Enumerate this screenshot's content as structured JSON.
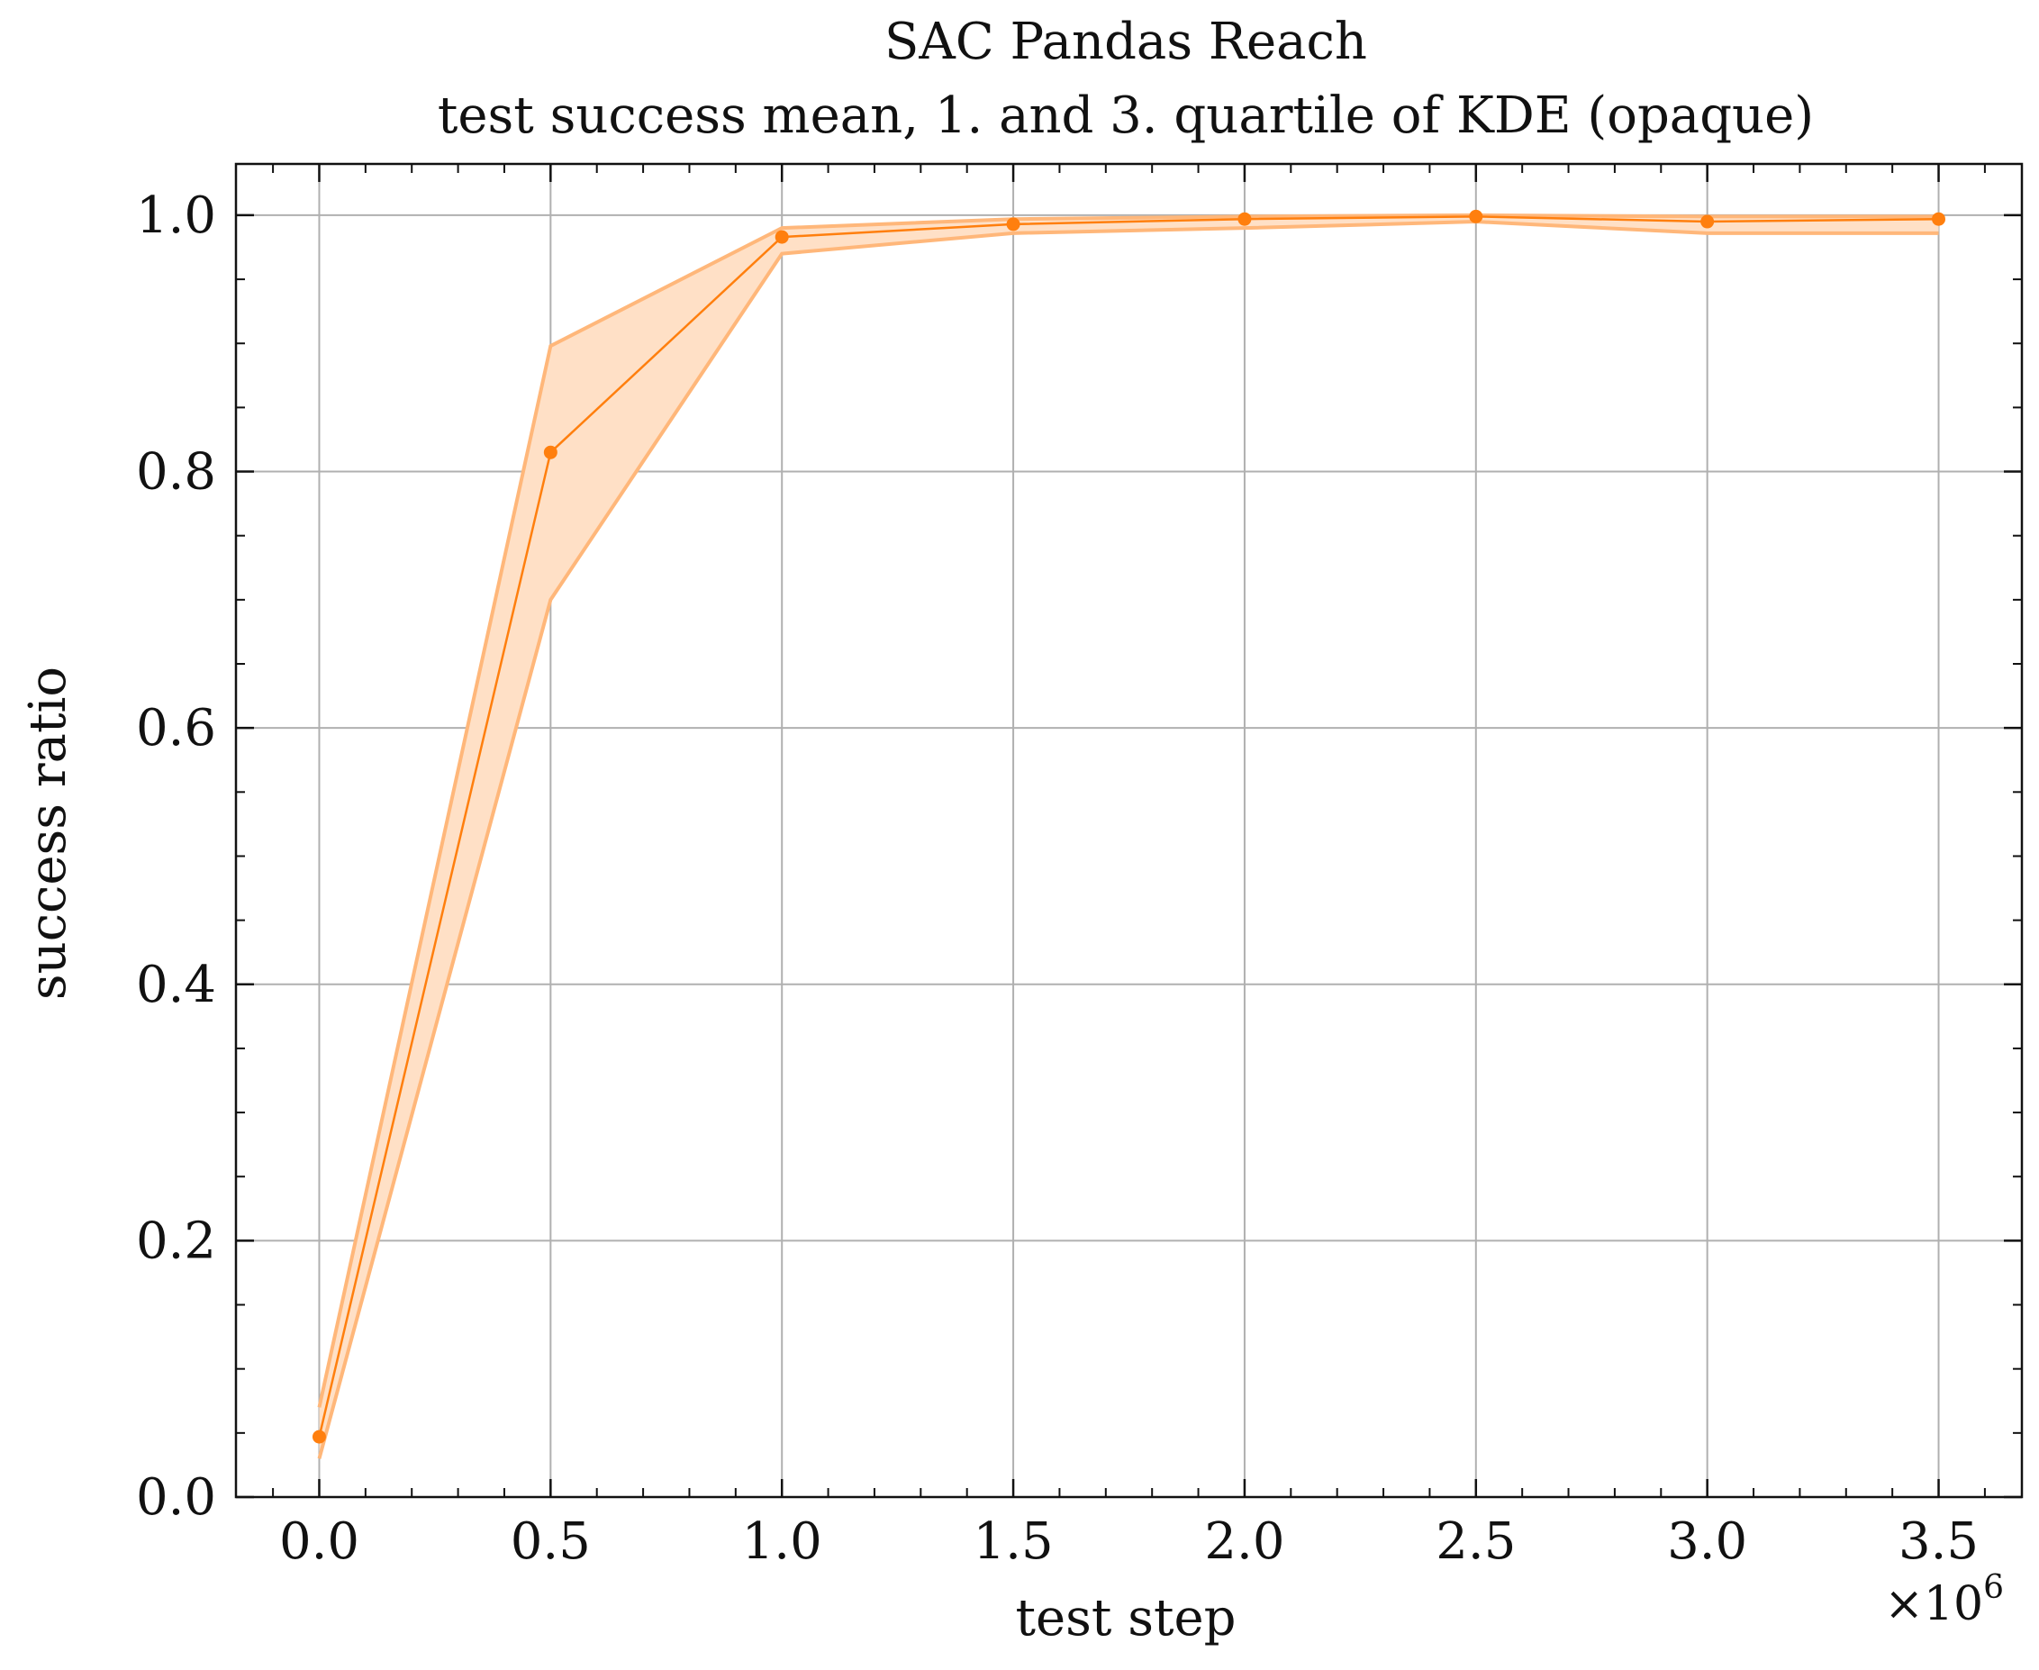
{
  "chart_data": {
    "type": "line",
    "title": "SAC Pandas Reach",
    "subtitle": "test success mean, 1. and 3. quartile of KDE (opaque)",
    "xlabel": "test step",
    "ylabel": "success ratio",
    "x_offset_label": "×10",
    "x_offset_exponent": "6",
    "xlim": [
      -0.18,
      3.68
    ],
    "ylim": [
      0.0,
      1.04
    ],
    "x_ticks": [
      0.0,
      0.5,
      1.0,
      1.5,
      2.0,
      2.5,
      3.0,
      3.5
    ],
    "x_tick_labels": [
      "0.0",
      "0.5",
      "1.0",
      "1.5",
      "2.0",
      "2.5",
      "3.0",
      "3.5"
    ],
    "y_ticks": [
      0.0,
      0.2,
      0.4,
      0.6,
      0.8,
      1.0
    ],
    "y_tick_labels": [
      "0.0",
      "0.2",
      "0.4",
      "0.6",
      "0.8",
      "1.0"
    ],
    "x_minor_step": 0.1,
    "y_minor_step": 0.05,
    "grid": true,
    "colors": {
      "line": "#ff7f0e",
      "band_fill": "#ffe0c6",
      "band_edge": "#ffb77a",
      "grid": "#b0b0b0",
      "axes": "#111111"
    },
    "series": [
      {
        "x": [
          0.0,
          0.5,
          1.0,
          1.5,
          2.0,
          2.5,
          3.0,
          3.5
        ],
        "mean": [
          0.047,
          0.815,
          0.983,
          0.993,
          0.997,
          0.999,
          0.995,
          0.997
        ],
        "q1": [
          0.03,
          0.7,
          0.97,
          0.986,
          0.99,
          0.995,
          0.986,
          0.986
        ],
        "q3": [
          0.07,
          0.898,
          0.99,
          0.997,
          0.999,
          1.0,
          0.999,
          0.999
        ]
      }
    ]
  }
}
